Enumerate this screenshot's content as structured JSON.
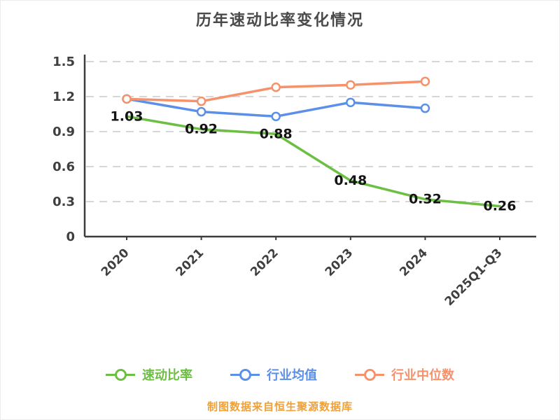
{
  "title": "历年速动比率变化情况",
  "footer": "制图数据来自恒生聚源数据库",
  "chart_data": {
    "type": "line",
    "title": "历年速动比率变化情况",
    "categories": [
      "2020",
      "2021",
      "2022",
      "2023",
      "2024",
      "2025Q1-Q3"
    ],
    "series": [
      {
        "name": "速动比率",
        "color": "#6dbf43",
        "values": [
          1.03,
          0.92,
          0.88,
          0.48,
          0.32,
          0.26
        ],
        "show_labels": true
      },
      {
        "name": "行业均值",
        "color": "#5b8fe8",
        "values": [
          1.18,
          1.07,
          1.03,
          1.15,
          1.1,
          null
        ],
        "show_labels": false
      },
      {
        "name": "行业中位数",
        "color": "#f6926b",
        "values": [
          1.18,
          1.16,
          1.28,
          1.3,
          1.33,
          null
        ],
        "show_labels": false
      }
    ],
    "ylim": [
      0,
      1.5
    ],
    "yticks": [
      0,
      0.3,
      0.6,
      0.9,
      1.2,
      1.5
    ],
    "grid": "dashed",
    "grid_color": "#d7d7d7",
    "axis_color": "#3c3c3c",
    "legend_position": "bottom"
  }
}
